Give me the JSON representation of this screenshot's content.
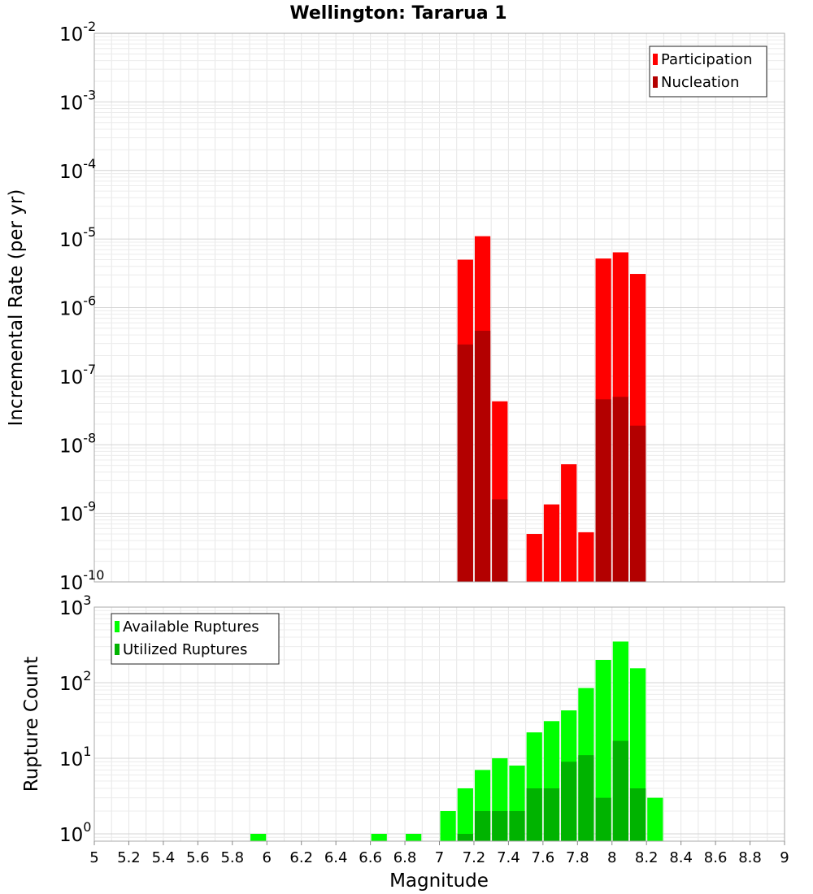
{
  "chart_data": [
    {
      "type": "bar",
      "title": "Wellington: Tararua 1",
      "ylabel": "Incremental Rate (per yr)",
      "xlabel": "Magnitude",
      "yscale": "log",
      "ylim": [
        1e-10,
        0.01
      ],
      "xlim": [
        5,
        9
      ],
      "ytick_labels": [
        {
          "base": "10",
          "exp": "-10"
        },
        {
          "base": "10",
          "exp": "-9"
        },
        {
          "base": "10",
          "exp": "-8"
        },
        {
          "base": "10",
          "exp": "-7"
        },
        {
          "base": "10",
          "exp": "-6"
        },
        {
          "base": "10",
          "exp": "-5"
        },
        {
          "base": "10",
          "exp": "-4"
        },
        {
          "base": "10",
          "exp": "-3"
        },
        {
          "base": "10",
          "exp": "-2"
        }
      ],
      "legend": {
        "position": "top-right",
        "entries": [
          "Participation",
          "Nucleation"
        ]
      },
      "colors": {
        "Participation": "#ff0000",
        "Nucleation": "#b30000"
      },
      "series": [
        {
          "name": "Participation",
          "points": [
            {
              "x": 7.15,
              "y": 5e-06
            },
            {
              "x": 7.25,
              "y": 1.1e-05
            },
            {
              "x": 7.35,
              "y": 4.3e-08
            },
            {
              "x": 7.55,
              "y": 5e-10
            },
            {
              "x": 7.65,
              "y": 1.35e-09
            },
            {
              "x": 7.75,
              "y": 5.2e-09
            },
            {
              "x": 7.85,
              "y": 5.3e-10
            },
            {
              "x": 7.95,
              "y": 5.2e-06
            },
            {
              "x": 8.05,
              "y": 6.4e-06
            },
            {
              "x": 8.15,
              "y": 3.1e-06
            }
          ]
        },
        {
          "name": "Nucleation",
          "points": [
            {
              "x": 7.15,
              "y": 2.9e-07
            },
            {
              "x": 7.25,
              "y": 4.6e-07
            },
            {
              "x": 7.35,
              "y": 1.6e-09
            },
            {
              "x": 7.95,
              "y": 4.6e-08
            },
            {
              "x": 8.05,
              "y": 5e-08
            },
            {
              "x": 8.15,
              "y": 1.9e-08
            }
          ]
        }
      ]
    },
    {
      "type": "bar",
      "ylabel": "Rupture Count",
      "xlabel": "Magnitude",
      "yscale": "log",
      "ylim": [
        0.8,
        1000
      ],
      "xlim": [
        5,
        9
      ],
      "ytick_labels": [
        {
          "base": "10",
          "exp": "0"
        },
        {
          "base": "10",
          "exp": "1"
        },
        {
          "base": "10",
          "exp": "2"
        },
        {
          "base": "10",
          "exp": "3"
        }
      ],
      "xtick_labels": [
        "5",
        "5.2",
        "5.4",
        "5.6",
        "5.8",
        "6",
        "6.2",
        "6.4",
        "6.6",
        "6.8",
        "7",
        "7.2",
        "7.4",
        "7.6",
        "7.8",
        "8",
        "8.2",
        "8.4",
        "8.6",
        "8.8",
        "9"
      ],
      "legend": {
        "position": "top-left",
        "entries": [
          "Available Ruptures",
          "Utilized Ruptures"
        ]
      },
      "colors": {
        "Available Ruptures": "#00ff00",
        "Utilized Ruptures": "#00b300"
      },
      "series": [
        {
          "name": "Available Ruptures",
          "points": [
            {
              "x": 5.95,
              "y": 1
            },
            {
              "x": 6.65,
              "y": 1
            },
            {
              "x": 6.85,
              "y": 1
            },
            {
              "x": 7.05,
              "y": 2
            },
            {
              "x": 7.15,
              "y": 4
            },
            {
              "x": 7.25,
              "y": 7
            },
            {
              "x": 7.35,
              "y": 10
            },
            {
              "x": 7.45,
              "y": 8
            },
            {
              "x": 7.55,
              "y": 22
            },
            {
              "x": 7.65,
              "y": 31
            },
            {
              "x": 7.75,
              "y": 43
            },
            {
              "x": 7.85,
              "y": 85
            },
            {
              "x": 7.95,
              "y": 200
            },
            {
              "x": 8.05,
              "y": 350
            },
            {
              "x": 8.15,
              "y": 155
            },
            {
              "x": 8.25,
              "y": 3
            }
          ]
        },
        {
          "name": "Utilized Ruptures",
          "points": [
            {
              "x": 7.15,
              "y": 1
            },
            {
              "x": 7.25,
              "y": 2
            },
            {
              "x": 7.35,
              "y": 2
            },
            {
              "x": 7.45,
              "y": 2
            },
            {
              "x": 7.55,
              "y": 4
            },
            {
              "x": 7.65,
              "y": 4
            },
            {
              "x": 7.75,
              "y": 9
            },
            {
              "x": 7.85,
              "y": 11
            },
            {
              "x": 7.95,
              "y": 3
            },
            {
              "x": 8.05,
              "y": 17
            },
            {
              "x": 8.15,
              "y": 4
            }
          ]
        }
      ]
    }
  ]
}
